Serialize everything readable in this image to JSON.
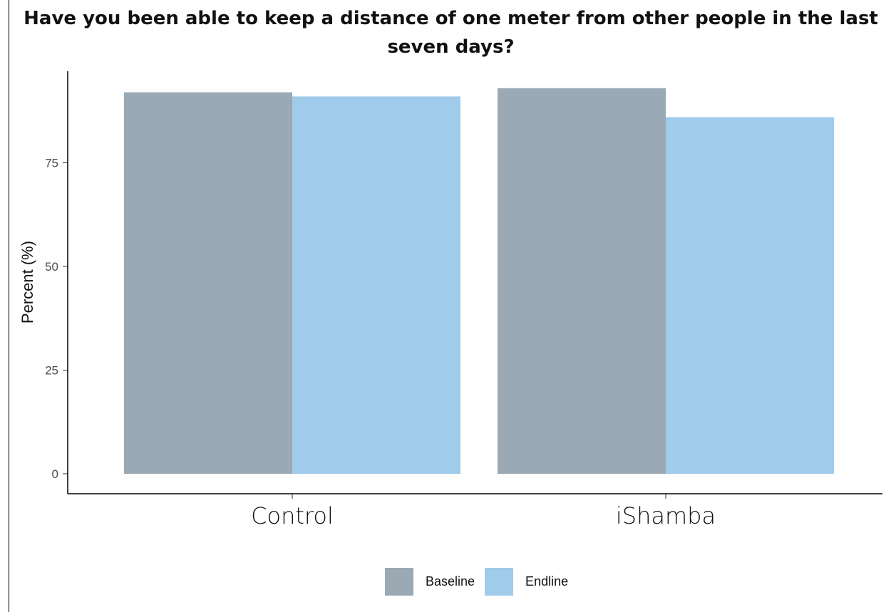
{
  "chart_data": {
    "type": "bar",
    "title": "Have you been able to keep a distance of one meter from other people in the last seven days?",
    "xlabel": "",
    "ylabel": "Percent (%)",
    "categories": [
      "Control",
      "iShamba"
    ],
    "series": [
      {
        "name": "Baseline",
        "color": "#9aa9b4",
        "values": [
          92,
          93
        ]
      },
      {
        "name": "Endline",
        "color": "#a0cbea",
        "values": [
          91,
          86
        ]
      }
    ],
    "yticks": [
      0,
      25,
      50,
      75
    ],
    "ylim": [
      0,
      97
    ],
    "grid": false,
    "legend_position": "bottom"
  }
}
